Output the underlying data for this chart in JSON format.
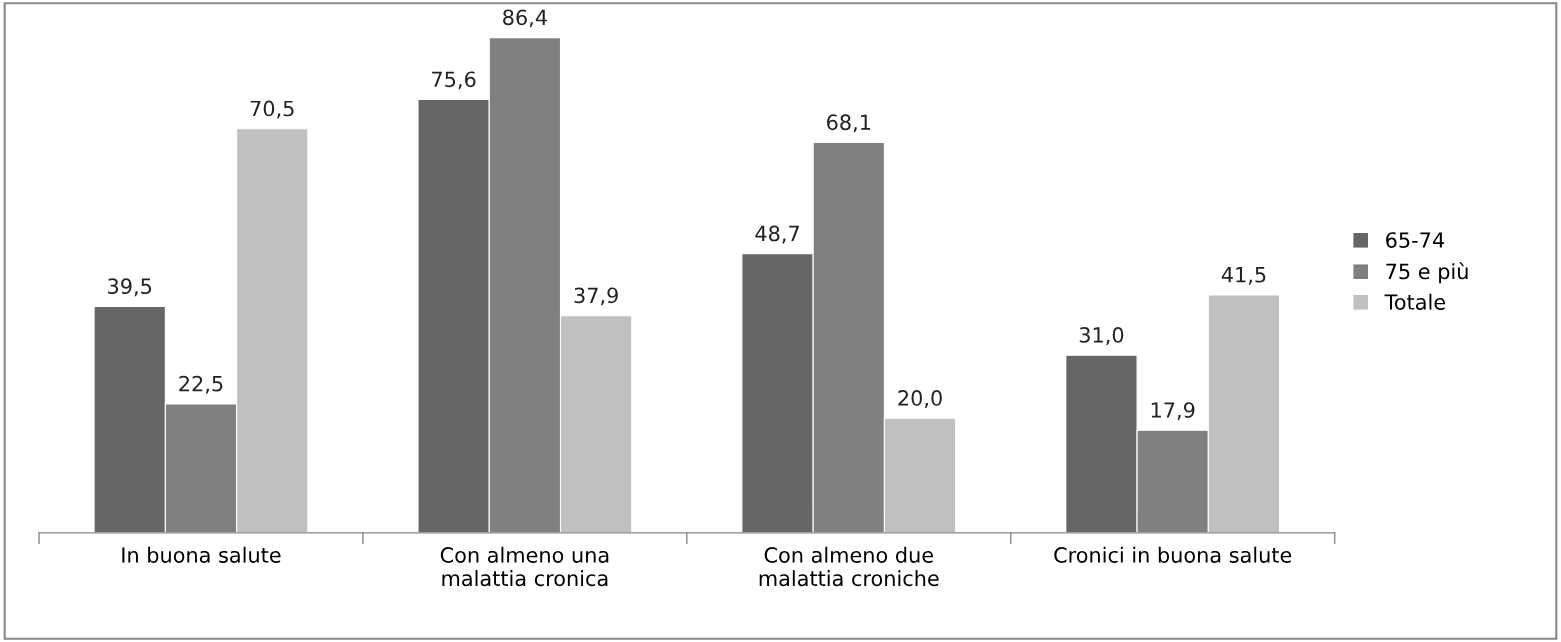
{
  "chart_data": {
    "type": "bar",
    "categories": [
      "In buona salute",
      "Con almeno una\nmalattia cronica",
      "Con almeno due\nmalattia croniche",
      "Cronici in buona salute"
    ],
    "series": [
      {
        "name": "65-74",
        "color": "#666666",
        "values": [
          39.5,
          75.6,
          48.7,
          31.0
        ],
        "value_labels": [
          "39,5",
          "75,6",
          "48,7",
          "31,0"
        ]
      },
      {
        "name": "75 e più",
        "color": "#808080",
        "values": [
          22.5,
          86.4,
          68.1,
          17.9
        ],
        "value_labels": [
          "22,5",
          "86,4",
          "68,1",
          "17,9"
        ]
      },
      {
        "name": "Totale",
        "color": "#c0c0c0",
        "values": [
          70.5,
          37.9,
          20.0,
          41.5
        ],
        "value_labels": [
          "70,5",
          "37,9",
          "20,0",
          "41,5"
        ]
      }
    ],
    "legend": "right",
    "grid": false,
    "tick_labels": "x"
  }
}
